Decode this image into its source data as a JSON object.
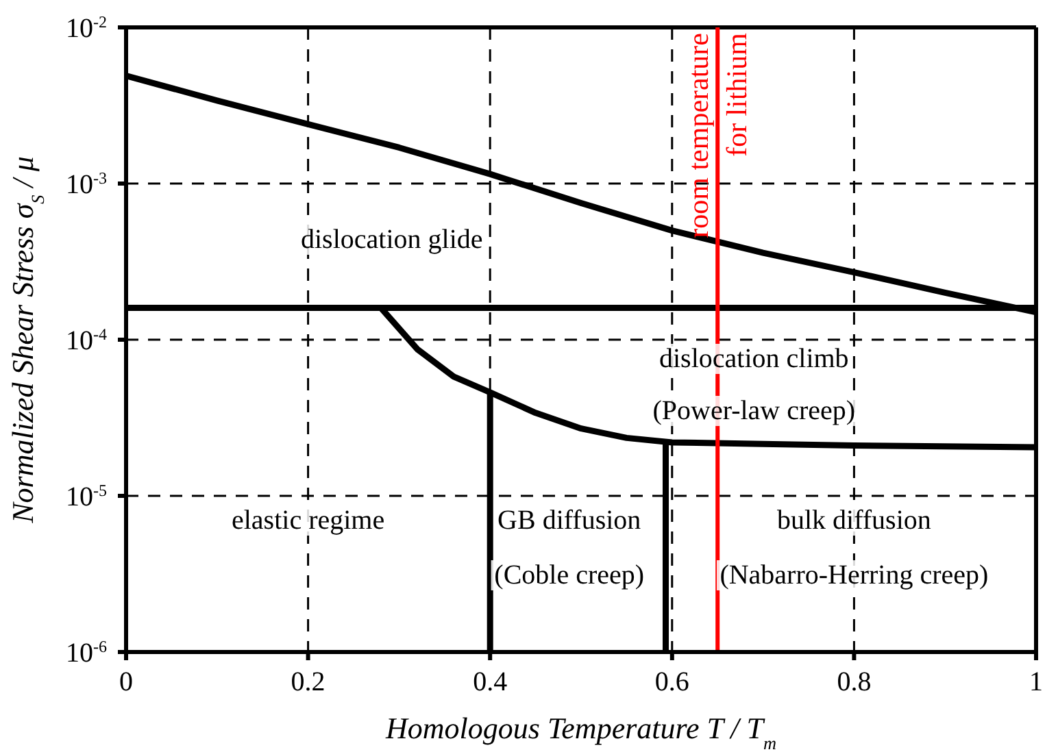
{
  "chart_data": {
    "type": "line",
    "xlabel": "Homologous Temperature T / T$_{m}$",
    "ylabel": "Normalized Shear Stress σ$_{S}$ / μ",
    "log": "y",
    "grid": true,
    "marker": "none",
    "line_style": "solid",
    "xlim": [
      0,
      1
    ],
    "xticks": [
      0,
      0.2,
      0.4,
      0.6,
      0.8,
      1
    ],
    "ylim": [
      1e-06,
      0.01
    ],
    "yticks": [
      {
        "value": 1e-06,
        "label": "10$^{-6}$"
      },
      {
        "value": 1e-05,
        "label": "10$^{-5}$"
      },
      {
        "value": 0.0001,
        "label": "10$^{-4}$"
      },
      {
        "value": 0.001,
        "label": "10$^{-3}$"
      },
      {
        "value": 0.01,
        "label": "10$^{-2}$"
      }
    ],
    "series": [
      {
        "color": "#000000",
        "x": [
          0,
          0.1,
          0.2,
          0.3,
          0.4,
          0.5,
          0.6,
          0.7,
          0.8,
          0.9,
          1
        ],
        "values": [
          0.0049,
          0.0034,
          0.0024,
          0.0017,
          0.00115,
          0.00075,
          0.0005,
          0.00036,
          0.00027,
          0.0002,
          0.00015
        ]
      },
      {
        "color": "#000000",
        "x": [
          0,
          0.5,
          1
        ],
        "values": [
          0.00016,
          0.00016,
          0.00016
        ]
      },
      {
        "color": "#000000",
        "x": [
          0.28,
          0.32,
          0.36,
          0.4,
          0.45,
          0.5,
          0.55,
          0.6,
          0.7,
          0.8,
          1
        ],
        "values": [
          0.00016,
          8.7e-05,
          5.8e-05,
          4.6e-05,
          3.4e-05,
          2.7e-05,
          2.35e-05,
          2.2e-05,
          2.15e-05,
          2.1e-05,
          2.05e-05
        ]
      },
      {
        "color": "#000000",
        "x": [
          0.4,
          0.4
        ],
        "values": [
          4.6e-05,
          1e-06
        ]
      },
      {
        "color": "#000000",
        "x": [
          0.593,
          0.593
        ],
        "values": [
          2.2e-05,
          1e-06
        ]
      }
    ],
    "ref_lines": [
      {
        "axis": "x",
        "value": 0.65,
        "label": "room temperature for lithium",
        "color": "#ff0000"
      }
    ],
    "annotations": [
      "dislocation glide",
      "dislocation climb",
      "(Power-law creep)",
      "elastic regime",
      "GB diffusion",
      "(Coble creep)",
      "bulk diffusion",
      "(Nabarro-Herring creep)"
    ]
  }
}
